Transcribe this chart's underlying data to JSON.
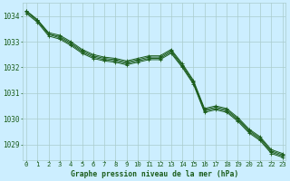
{
  "xlabel": "Graphe pression niveau de la mer (hPa)",
  "bg_color": "#cceeff",
  "grid_color": "#aacccc",
  "line_color": "#1a5c1a",
  "text_color": "#1a5c1a",
  "ylim": [
    1028.4,
    1034.5
  ],
  "xlim": [
    -0.3,
    23.3
  ],
  "yticks": [
    1029,
    1030,
    1031,
    1032,
    1033,
    1034
  ],
  "xticks": [
    0,
    1,
    2,
    3,
    4,
    5,
    6,
    7,
    8,
    9,
    10,
    11,
    12,
    13,
    14,
    15,
    16,
    17,
    18,
    19,
    20,
    21,
    22,
    23
  ],
  "series": [
    [
      1034.2,
      1033.85,
      1033.35,
      1033.25,
      1033.0,
      1032.7,
      1032.5,
      1032.4,
      1032.35,
      1032.25,
      1032.35,
      1032.45,
      1032.45,
      1032.7,
      1032.15,
      1031.5,
      1030.4,
      1030.5,
      1030.4,
      1030.05,
      1029.6,
      1029.3,
      1028.8,
      1028.65
    ],
    [
      1034.2,
      1033.85,
      1033.3,
      1033.2,
      1032.95,
      1032.65,
      1032.45,
      1032.35,
      1032.3,
      1032.2,
      1032.3,
      1032.4,
      1032.4,
      1032.65,
      1032.1,
      1031.45,
      1030.35,
      1030.45,
      1030.35,
      1030.0,
      1029.55,
      1029.25,
      1028.75,
      1028.6
    ],
    [
      1034.15,
      1033.8,
      1033.28,
      1033.15,
      1032.9,
      1032.6,
      1032.4,
      1032.3,
      1032.25,
      1032.15,
      1032.25,
      1032.35,
      1032.35,
      1032.6,
      1032.05,
      1031.4,
      1030.3,
      1030.4,
      1030.3,
      1029.95,
      1029.5,
      1029.2,
      1028.7,
      1028.55
    ],
    [
      1034.1,
      1033.75,
      1033.22,
      1033.1,
      1032.85,
      1032.55,
      1032.35,
      1032.25,
      1032.2,
      1032.1,
      1032.2,
      1032.3,
      1032.3,
      1032.55,
      1032.0,
      1031.35,
      1030.25,
      1030.35,
      1030.25,
      1029.9,
      1029.45,
      1029.15,
      1028.65,
      1028.5
    ]
  ]
}
